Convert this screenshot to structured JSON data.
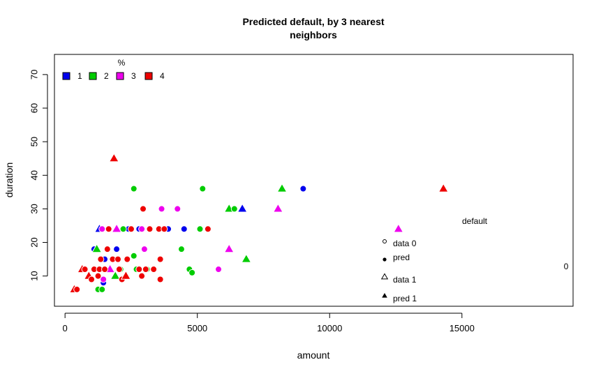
{
  "chart_data": {
    "type": "scatter",
    "title": "Predicted default, by 3 nearest",
    "title_line2": "neighbors",
    "xlabel": "amount",
    "ylabel": "duration",
    "xlim": [
      -400,
      19200
    ],
    "ylim": [
      1,
      76
    ],
    "xticks": [
      0,
      5000,
      10000,
      15000
    ],
    "yticks": [
      10,
      20,
      30,
      40,
      50,
      60,
      70
    ],
    "grid": false,
    "color_legend": {
      "title": "%",
      "placement": "top-left",
      "entries": [
        {
          "label": "1",
          "color": "#0000ee"
        },
        {
          "label": "2",
          "color": "#00cc00"
        },
        {
          "label": "3",
          "color": "#ee00ee"
        },
        {
          "label": "4",
          "color": "#ee0000"
        }
      ]
    },
    "shape_legend": {
      "title": "default",
      "title2": "0",
      "placement": "right",
      "entries": [
        {
          "label": "data 0",
          "marker": "open-circle"
        },
        {
          "label": "pred",
          "marker": "filled-circle"
        },
        {
          "label": "data 1",
          "marker": "open-triangle"
        },
        {
          "label": "pred 1",
          "marker": "filled-triangle"
        }
      ]
    },
    "series": [
      {
        "name": "1",
        "color": "#0000ee",
        "points": [
          {
            "x": 1300,
            "y": 24,
            "shape": "triangle"
          },
          {
            "x": 1100,
            "y": 18,
            "shape": "circle"
          },
          {
            "x": 1500,
            "y": 15,
            "shape": "circle"
          },
          {
            "x": 1450,
            "y": 8,
            "shape": "circle"
          },
          {
            "x": 1950,
            "y": 18,
            "shape": "circle"
          },
          {
            "x": 2400,
            "y": 24,
            "shape": "circle"
          },
          {
            "x": 2800,
            "y": 24,
            "shape": "circle"
          },
          {
            "x": 3900,
            "y": 24,
            "shape": "circle"
          },
          {
            "x": 4500,
            "y": 24,
            "shape": "circle"
          },
          {
            "x": 6700,
            "y": 30,
            "shape": "triangle"
          },
          {
            "x": 9000,
            "y": 36,
            "shape": "circle"
          }
        ]
      },
      {
        "name": "2",
        "color": "#00cc00",
        "points": [
          {
            "x": 1200,
            "y": 18,
            "shape": "triangle"
          },
          {
            "x": 1250,
            "y": 6,
            "shape": "circle"
          },
          {
            "x": 1400,
            "y": 6,
            "shape": "circle"
          },
          {
            "x": 1900,
            "y": 10,
            "shape": "triangle"
          },
          {
            "x": 2100,
            "y": 12,
            "shape": "circle"
          },
          {
            "x": 2200,
            "y": 24,
            "shape": "circle"
          },
          {
            "x": 2600,
            "y": 36,
            "shape": "circle"
          },
          {
            "x": 2600,
            "y": 16,
            "shape": "circle"
          },
          {
            "x": 2700,
            "y": 12,
            "shape": "circle"
          },
          {
            "x": 3100,
            "y": 12,
            "shape": "circle"
          },
          {
            "x": 4400,
            "y": 18,
            "shape": "circle"
          },
          {
            "x": 4700,
            "y": 12,
            "shape": "circle"
          },
          {
            "x": 4800,
            "y": 11,
            "shape": "circle"
          },
          {
            "x": 5100,
            "y": 24,
            "shape": "circle"
          },
          {
            "x": 5200,
            "y": 36,
            "shape": "circle"
          },
          {
            "x": 6200,
            "y": 30,
            "shape": "triangle"
          },
          {
            "x": 6400,
            "y": 30,
            "shape": "circle"
          },
          {
            "x": 6850,
            "y": 15,
            "shape": "triangle"
          },
          {
            "x": 8200,
            "y": 36,
            "shape": "triangle"
          }
        ]
      },
      {
        "name": "3",
        "color": "#ee00ee",
        "points": [
          {
            "x": 1400,
            "y": 24,
            "shape": "circle"
          },
          {
            "x": 1450,
            "y": 9,
            "shape": "circle"
          },
          {
            "x": 1700,
            "y": 12,
            "shape": "triangle"
          },
          {
            "x": 1950,
            "y": 24,
            "shape": "triangle"
          },
          {
            "x": 2900,
            "y": 24,
            "shape": "circle"
          },
          {
            "x": 3000,
            "y": 18,
            "shape": "circle"
          },
          {
            "x": 3650,
            "y": 30,
            "shape": "circle"
          },
          {
            "x": 4250,
            "y": 30,
            "shape": "circle"
          },
          {
            "x": 5800,
            "y": 12,
            "shape": "circle"
          },
          {
            "x": 6200,
            "y": 18,
            "shape": "triangle"
          },
          {
            "x": 8050,
            "y": 30,
            "shape": "triangle"
          },
          {
            "x": 12600,
            "y": 24,
            "shape": "triangle"
          }
        ]
      },
      {
        "name": "4",
        "color": "#ee0000",
        "points": [
          {
            "x": 350,
            "y": 6,
            "shape": "triangle"
          },
          {
            "x": 450,
            "y": 6,
            "shape": "circle"
          },
          {
            "x": 650,
            "y": 12,
            "shape": "triangle"
          },
          {
            "x": 750,
            "y": 12,
            "shape": "circle"
          },
          {
            "x": 900,
            "y": 10,
            "shape": "triangle"
          },
          {
            "x": 1000,
            "y": 9,
            "shape": "circle"
          },
          {
            "x": 1100,
            "y": 12,
            "shape": "circle"
          },
          {
            "x": 1250,
            "y": 10,
            "shape": "circle"
          },
          {
            "x": 1300,
            "y": 12,
            "shape": "circle"
          },
          {
            "x": 1350,
            "y": 15,
            "shape": "circle"
          },
          {
            "x": 1500,
            "y": 12,
            "shape": "circle"
          },
          {
            "x": 1600,
            "y": 18,
            "shape": "circle"
          },
          {
            "x": 1650,
            "y": 24,
            "shape": "circle"
          },
          {
            "x": 1800,
            "y": 15,
            "shape": "circle"
          },
          {
            "x": 1850,
            "y": 45,
            "shape": "triangle"
          },
          {
            "x": 2000,
            "y": 15,
            "shape": "circle"
          },
          {
            "x": 2050,
            "y": 12,
            "shape": "circle"
          },
          {
            "x": 2150,
            "y": 9,
            "shape": "circle"
          },
          {
            "x": 2300,
            "y": 10,
            "shape": "triangle"
          },
          {
            "x": 2350,
            "y": 15,
            "shape": "circle"
          },
          {
            "x": 2500,
            "y": 24,
            "shape": "circle"
          },
          {
            "x": 2800,
            "y": 12,
            "shape": "circle"
          },
          {
            "x": 2900,
            "y": 10,
            "shape": "circle"
          },
          {
            "x": 2950,
            "y": 30,
            "shape": "circle"
          },
          {
            "x": 3050,
            "y": 12,
            "shape": "circle"
          },
          {
            "x": 3200,
            "y": 24,
            "shape": "circle"
          },
          {
            "x": 3350,
            "y": 12,
            "shape": "circle"
          },
          {
            "x": 3550,
            "y": 24,
            "shape": "circle"
          },
          {
            "x": 3600,
            "y": 15,
            "shape": "circle"
          },
          {
            "x": 3600,
            "y": 9,
            "shape": "circle"
          },
          {
            "x": 3750,
            "y": 24,
            "shape": "circle"
          },
          {
            "x": 5400,
            "y": 24,
            "shape": "circle"
          },
          {
            "x": 14300,
            "y": 36,
            "shape": "triangle"
          }
        ]
      }
    ]
  }
}
